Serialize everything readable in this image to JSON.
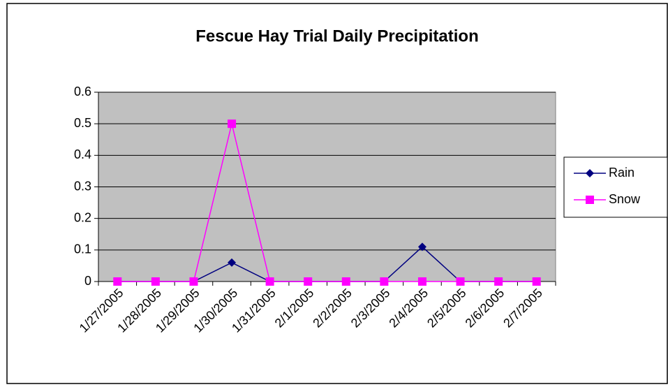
{
  "chart_data": {
    "type": "line",
    "title": "Fescue Hay Trial Daily Precipitation",
    "categories": [
      "1/27/2005",
      "1/28/2005",
      "1/29/2005",
      "1/30/2005",
      "1/31/2005",
      "2/1/2005",
      "2/2/2005",
      "2/3/2005",
      "2/4/2005",
      "2/5/2005",
      "2/6/2005",
      "2/7/2005"
    ],
    "series": [
      {
        "name": "Rain",
        "color": "#000080",
        "marker": "diamond",
        "values": [
          0,
          0,
          0,
          0.06,
          0,
          0,
          0,
          0,
          0.11,
          0,
          0,
          0
        ]
      },
      {
        "name": "Snow",
        "color": "#ff00ff",
        "marker": "square",
        "values": [
          0,
          0,
          0,
          0.5,
          0,
          0,
          0,
          0,
          0,
          0,
          0,
          0
        ]
      }
    ],
    "ylim": [
      0,
      0.6
    ],
    "yticks": [
      0,
      0.1,
      0.2,
      0.3,
      0.4,
      0.5,
      0.6
    ],
    "grid": true,
    "legend": "right",
    "plot_background": "#c0c0c0"
  }
}
